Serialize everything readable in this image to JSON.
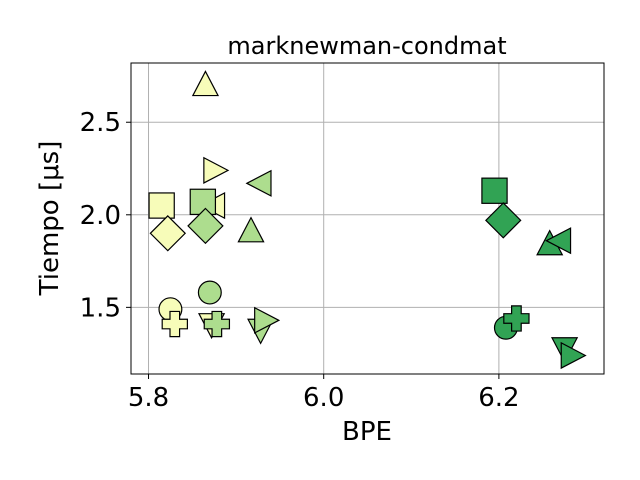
{
  "chart_data": {
    "type": "scatter",
    "title": "marknewman-condmat",
    "xlabel": "BPE",
    "ylabel": "Tiempo [μs]",
    "xlim": [
      5.78,
      6.32
    ],
    "ylim": [
      1.14,
      2.82
    ],
    "xticks": [
      5.8,
      6.0,
      6.2
    ],
    "xtick_labels": [
      "5.8",
      "6.0",
      "6.2"
    ],
    "yticks": [
      1.5,
      2.0,
      2.5
    ],
    "ytick_labels": [
      "1.5",
      "2.0",
      "2.5"
    ],
    "grid": true,
    "colors": {
      "pale_yellow": "#f7fcb9",
      "light_green": "#addd8e",
      "dark_green": "#31a354"
    },
    "points": [
      {
        "x": 5.865,
        "y": 2.7,
        "marker": "triangle-up",
        "color": "pale_yellow"
      },
      {
        "x": 5.875,
        "y": 2.24,
        "marker": "triangle-right",
        "color": "pale_yellow"
      },
      {
        "x": 5.815,
        "y": 2.05,
        "marker": "square",
        "color": "pale_yellow"
      },
      {
        "x": 5.875,
        "y": 2.05,
        "marker": "triangle-left",
        "color": "pale_yellow"
      },
      {
        "x": 5.822,
        "y": 1.9,
        "marker": "diamond",
        "color": "pale_yellow"
      },
      {
        "x": 5.825,
        "y": 1.49,
        "marker": "circle",
        "color": "pale_yellow"
      },
      {
        "x": 5.83,
        "y": 1.41,
        "marker": "plus",
        "color": "pale_yellow"
      },
      {
        "x": 5.872,
        "y": 1.41,
        "marker": "triangle-down",
        "color": "pale_yellow"
      },
      {
        "x": 5.862,
        "y": 2.07,
        "marker": "square",
        "color": "light_green"
      },
      {
        "x": 5.928,
        "y": 2.17,
        "marker": "triangle-left",
        "color": "light_green"
      },
      {
        "x": 5.865,
        "y": 1.94,
        "marker": "diamond",
        "color": "light_green"
      },
      {
        "x": 5.917,
        "y": 1.91,
        "marker": "triangle-up",
        "color": "light_green"
      },
      {
        "x": 5.87,
        "y": 1.58,
        "marker": "circle",
        "color": "light_green"
      },
      {
        "x": 5.878,
        "y": 1.41,
        "marker": "plus",
        "color": "light_green"
      },
      {
        "x": 5.928,
        "y": 1.38,
        "marker": "triangle-down",
        "color": "light_green"
      },
      {
        "x": 5.933,
        "y": 1.43,
        "marker": "triangle-right",
        "color": "light_green"
      },
      {
        "x": 6.195,
        "y": 2.13,
        "marker": "square",
        "color": "dark_green"
      },
      {
        "x": 6.205,
        "y": 1.97,
        "marker": "diamond",
        "color": "dark_green"
      },
      {
        "x": 6.258,
        "y": 1.84,
        "marker": "triangle-up",
        "color": "dark_green"
      },
      {
        "x": 6.27,
        "y": 1.86,
        "marker": "triangle-left",
        "color": "dark_green"
      },
      {
        "x": 6.208,
        "y": 1.39,
        "marker": "circle",
        "color": "dark_green"
      },
      {
        "x": 6.22,
        "y": 1.44,
        "marker": "plus",
        "color": "dark_green"
      },
      {
        "x": 6.275,
        "y": 1.28,
        "marker": "triangle-down",
        "color": "dark_green"
      },
      {
        "x": 6.283,
        "y": 1.24,
        "marker": "triangle-right",
        "color": "dark_green"
      }
    ]
  }
}
